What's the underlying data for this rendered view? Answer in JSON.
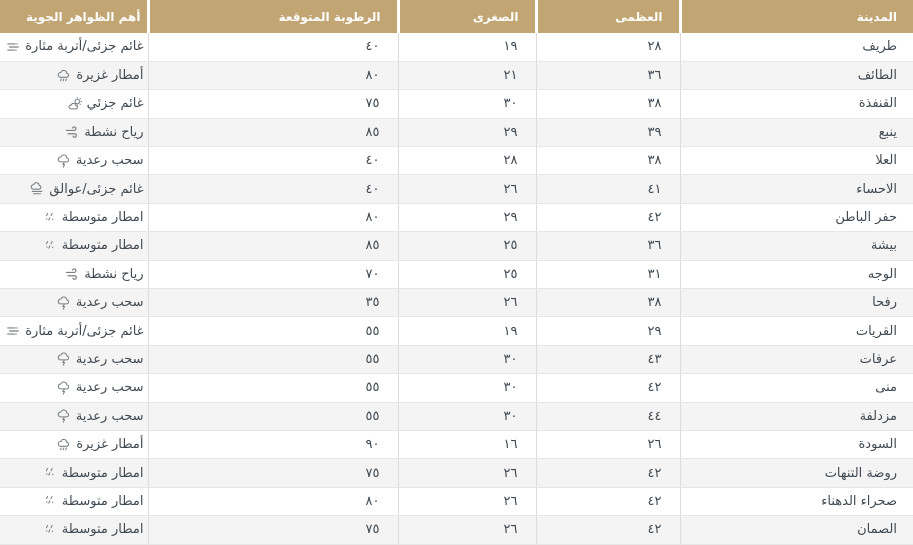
{
  "page": {
    "type": "weather-forecast-table",
    "language": "arabic",
    "direction": "rtl"
  },
  "colors": {
    "header_bg": "#c1a673",
    "header_text": "#ffffff",
    "row_bg": "#ffffff",
    "row_alt_bg": "#f4f4f4",
    "text": "#414a52",
    "icon": "#7a8085",
    "column_line": "#dcdcdc",
    "row_line": "#e6e6e6"
  },
  "table": {
    "columns": [
      {
        "id": "city",
        "label": "المدينة"
      },
      {
        "id": "max",
        "label": "العظمى"
      },
      {
        "id": "min",
        "label": "الصغرى"
      },
      {
        "id": "humidity",
        "label": "الرطوبة المتوقعة"
      },
      {
        "id": "phenomena",
        "label": "أهم الظواهر الجوية"
      }
    ],
    "rows": [
      {
        "city": "طريف",
        "max": "٢٨",
        "min": "١٩",
        "humidity": "٤٠",
        "phenomena": "غائم جزئى/أتربة مثارة",
        "icon": "dust-icon"
      },
      {
        "city": "الطائف",
        "max": "٣٦",
        "min": "٢١",
        "humidity": "٨٠",
        "phenomena": "أمطار غزيرة",
        "icon": "heavy-rain-icon"
      },
      {
        "city": "القنفذة",
        "max": "٣٨",
        "min": "٣٠",
        "humidity": "٧٥",
        "phenomena": "غائم جزئي",
        "icon": "partly-cloudy-icon"
      },
      {
        "city": "ينبع",
        "max": "٣٩",
        "min": "٢٩",
        "humidity": "٨٥",
        "phenomena": "رياح نشطة",
        "icon": "wind-icon"
      },
      {
        "city": "العلا",
        "max": "٣٨",
        "min": "٢٨",
        "humidity": "٤٠",
        "phenomena": "سحب رعدية",
        "icon": "thunder-cloud-icon"
      },
      {
        "city": "الاحساء",
        "max": "٤١",
        "min": "٢٦",
        "humidity": "٤٠",
        "phenomena": "غائم جزئى/عوالق",
        "icon": "haze-icon"
      },
      {
        "city": "حفر الباطن",
        "max": "٤٢",
        "min": "٢٩",
        "humidity": "٨٠",
        "phenomena": "امطار متوسطة",
        "icon": "moderate-rain-icon"
      },
      {
        "city": "بيشة",
        "max": "٣٦",
        "min": "٢٥",
        "humidity": "٨٥",
        "phenomena": "امطار متوسطة",
        "icon": "moderate-rain-icon"
      },
      {
        "city": "الوجه",
        "max": "٣١",
        "min": "٢٥",
        "humidity": "٧٠",
        "phenomena": "رياح نشطة",
        "icon": "wind-icon"
      },
      {
        "city": "رفحا",
        "max": "٣٨",
        "min": "٢٦",
        "humidity": "٣٥",
        "phenomena": "سحب رعدية",
        "icon": "thunder-cloud-icon"
      },
      {
        "city": "القريات",
        "max": "٢٩",
        "min": "١٩",
        "humidity": "٥٥",
        "phenomena": "غائم جزئى/أتربة مثارة",
        "icon": "dust-icon"
      },
      {
        "city": "عرفات",
        "max": "٤٣",
        "min": "٣٠",
        "humidity": "٥٥",
        "phenomena": "سحب رعدية",
        "icon": "thunder-cloud-icon"
      },
      {
        "city": "منى",
        "max": "٤٢",
        "min": "٣٠",
        "humidity": "٥٥",
        "phenomena": "سحب رعدية",
        "icon": "thunder-cloud-icon"
      },
      {
        "city": "مزدلفة",
        "max": "٤٤",
        "min": "٣٠",
        "humidity": "٥٥",
        "phenomena": "سحب رعدية",
        "icon": "thunder-cloud-icon"
      },
      {
        "city": "السودة",
        "max": "٢٦",
        "min": "١٦",
        "humidity": "٩٠",
        "phenomena": "أمطار غزيرة",
        "icon": "heavy-rain-icon"
      },
      {
        "city": "روضة التنهات",
        "max": "٤٢",
        "min": "٢٦",
        "humidity": "٧٥",
        "phenomena": "امطار متوسطة",
        "icon": "moderate-rain-icon"
      },
      {
        "city": "صحراء الدهناء",
        "max": "٤٢",
        "min": "٢٦",
        "humidity": "٨٠",
        "phenomena": "امطار متوسطة",
        "icon": "moderate-rain-icon"
      },
      {
        "city": "الصمان",
        "max": "٤٢",
        "min": "٢٦",
        "humidity": "٧٥",
        "phenomena": "امطار متوسطة",
        "icon": "moderate-rain-icon"
      }
    ]
  }
}
